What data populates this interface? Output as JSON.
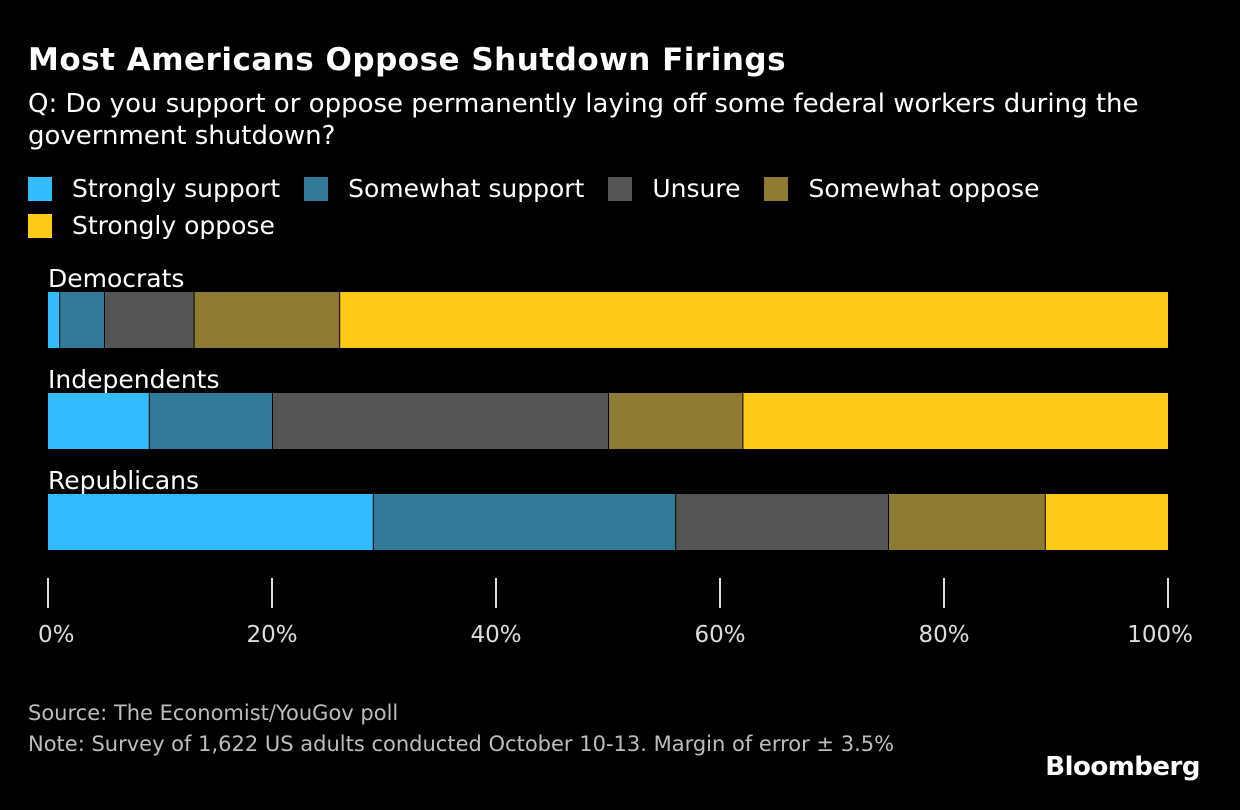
{
  "chart_data": {
    "type": "bar",
    "orientation": "horizontal",
    "stacked": true,
    "title": "Most Americans Oppose Shutdown Firings",
    "subtitle": "Q: Do you support or oppose permanently laying off some federal workers during the government shutdown?",
    "categories": [
      "Democrats",
      "Independents",
      "Republicans"
    ],
    "series": [
      {
        "name": "Strongly support",
        "color": "#33bbff",
        "values": [
          1,
          9,
          29
        ]
      },
      {
        "name": "Somewhat support",
        "color": "#337a99",
        "values": [
          4,
          11,
          27
        ]
      },
      {
        "name": "Unsure",
        "color": "#555555",
        "values": [
          8,
          30,
          19
        ]
      },
      {
        "name": "Somewhat oppose",
        "color": "#8f7a33",
        "values": [
          13,
          12,
          14
        ]
      },
      {
        "name": "Strongly oppose",
        "color": "#ffc91a",
        "values": [
          74,
          38,
          11
        ]
      }
    ],
    "xlim": [
      0,
      100
    ],
    "xticks": [
      "0%",
      "20%",
      "40%",
      "60%",
      "80%",
      "100%"
    ],
    "legend": "top",
    "grid": false
  },
  "source": "Source: The Economist/YouGov poll",
  "note": "Note: Survey of 1,622 US adults conducted October 10-13. Margin of error ± 3.5%",
  "logo": "Bloomberg"
}
